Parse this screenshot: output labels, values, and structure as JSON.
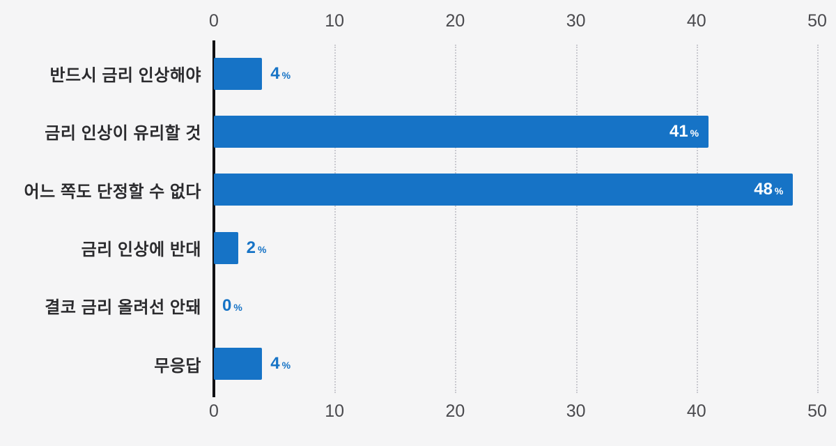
{
  "chart_data": {
    "type": "bar",
    "orientation": "horizontal",
    "title": "",
    "xlabel": "",
    "ylabel": "",
    "unit": "%",
    "xlim": [
      0,
      50
    ],
    "xticks": [
      0,
      10,
      20,
      30,
      40,
      50
    ],
    "grid": "vertical-dotted",
    "legend": "none",
    "categories": [
      "반드시 금리 인상해야",
      "금리 인상이 유리할 것",
      "어느 쪽도 단정할 수 없다",
      "금리 인상에 반대",
      "결코 금리 올려선 안돼",
      "무응답"
    ],
    "values": [
      4,
      41,
      48,
      2,
      0,
      4
    ],
    "value_labels": [
      "4",
      "41",
      "48",
      "2",
      "0",
      "4"
    ],
    "inside_label_threshold": 10,
    "colors": {
      "bar": "#1673c6",
      "value_inside": "#ffffff",
      "value_outside": "#1673c6",
      "background": "#f5f5f6",
      "axis": "#111114",
      "gridline": "#c9c9cf",
      "tick_text": "#4a4a4e",
      "category_text": "#2b2b2e"
    }
  }
}
